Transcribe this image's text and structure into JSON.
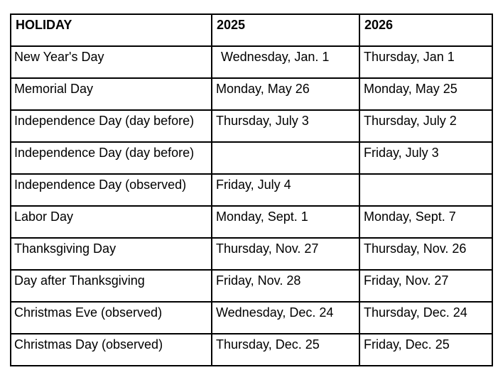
{
  "table": {
    "columns": [
      {
        "label": "HOLIDAY"
      },
      {
        "label": "2025"
      },
      {
        "label": "2026"
      }
    ],
    "rows": [
      {
        "holiday": "New Year's Day",
        "y2025": "Wednesday, Jan. 1",
        "y2026": "Thursday, Jan 1"
      },
      {
        "holiday": "Memorial Day",
        "y2025": "Monday, May 26",
        "y2026": "Monday, May 25"
      },
      {
        "holiday": "Independence Day (day before)",
        "y2025": "Thursday, July 3",
        "y2026": "Thursday, July 2"
      },
      {
        "holiday": "Independence Day (day before)",
        "y2025": "",
        "y2026": "Friday, July 3"
      },
      {
        "holiday": "Independence Day (observed)",
        "y2025": "Friday, July 4",
        "y2026": ""
      },
      {
        "holiday": "Labor Day",
        "y2025": "Monday, Sept. 1",
        "y2026": "Monday, Sept. 7"
      },
      {
        "holiday": "Thanksgiving Day",
        "y2025": "Thursday, Nov. 27",
        "y2026": "Thursday, Nov. 26"
      },
      {
        "holiday": "Day after Thanksgiving",
        "y2025": "Friday, Nov. 28",
        "y2026": "Friday, Nov. 27"
      },
      {
        "holiday": "Christmas Eve (observed)",
        "y2025": "Wednesday, Dec. 24",
        "y2026": "Thursday, Dec. 24"
      },
      {
        "holiday": "Christmas Day (observed)",
        "y2025": "Thursday, Dec. 25",
        "y2026": "Friday, Dec. 25"
      }
    ],
    "colors": {
      "border": "#000000",
      "text": "#000000",
      "background": "#ffffff"
    }
  }
}
